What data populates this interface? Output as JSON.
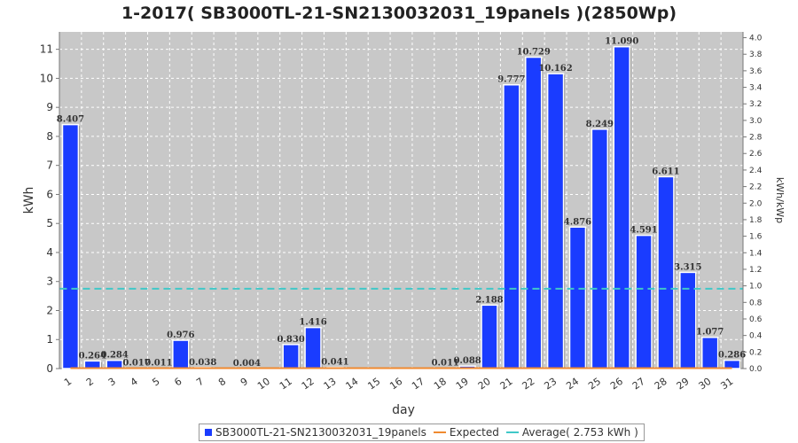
{
  "chart_data": {
    "type": "bar",
    "title": "1-2017( SB3000TL-21-SN2130032031_19panels )(2850Wp)",
    "xlabel": "day",
    "ylabel": "kWh",
    "y2label": "kWh/kWp",
    "ylim": [
      0,
      11.6
    ],
    "y2lim": [
      0,
      4.07
    ],
    "yticks": [
      0,
      1,
      2,
      3,
      4,
      5,
      6,
      7,
      8,
      9,
      10,
      11
    ],
    "y2ticks": [
      "0.0",
      "0.2",
      "0.4",
      "0.6",
      "0.8",
      "1.0",
      "1.2",
      "1.4",
      "1.6",
      "1.8",
      "2.0",
      "2.2",
      "2.4",
      "2.6",
      "2.8",
      "3.0",
      "3.2",
      "3.4",
      "3.6",
      "3.8",
      "4.0"
    ],
    "grid": true,
    "categories": [
      "1",
      "2",
      "3",
      "4",
      "5",
      "6",
      "7",
      "8",
      "9",
      "10",
      "11",
      "12",
      "13",
      "14",
      "15",
      "16",
      "17",
      "18",
      "19",
      "20",
      "21",
      "22",
      "23",
      "24",
      "25",
      "26",
      "27",
      "28",
      "29",
      "30",
      "31"
    ],
    "series": [
      {
        "name": "SB3000TL-21-SN2130032031_19panels",
        "color": "#1a3cff",
        "values": [
          8.407,
          0.264,
          0.284,
          0.017,
          0.011,
          0.976,
          0.038,
          0,
          0.004,
          0,
          0.83,
          1.416,
          0.041,
          0,
          0,
          0,
          0,
          0.011,
          0.088,
          2.188,
          9.777,
          10.729,
          10.162,
          4.876,
          8.249,
          11.09,
          4.591,
          6.611,
          3.315,
          1.077,
          0.286
        ],
        "labels": [
          "8.407",
          "0.264",
          "0.284",
          "0.017",
          "0.011",
          "0.976",
          "0.038",
          "",
          "0.004",
          "",
          "0.830",
          "1.416",
          "0.041",
          "",
          "",
          "",
          "",
          "0.011",
          "0.088",
          "2.188",
          "9.777",
          "10.729",
          "10.162",
          "4.876",
          "8.249",
          "11.090",
          "4.591",
          "6.611",
          "3.315",
          "1.077",
          "0.286"
        ]
      },
      {
        "name": "Expected",
        "color": "#f08a30",
        "values": [
          0,
          0,
          0,
          0,
          0,
          0,
          0,
          0,
          0,
          0,
          0,
          0,
          0,
          0,
          0,
          0,
          0,
          0,
          0,
          0,
          0,
          0,
          0,
          0,
          0,
          0,
          0,
          0,
          0,
          0,
          0
        ]
      },
      {
        "name": "Average( 2.753 kWh )",
        "color": "#40c8c8",
        "value": 2.753
      }
    ],
    "legend": "bottom",
    "colors": {
      "plot_bg": "#c8c8c8",
      "grid": "#ffffff",
      "bar": "#1a3cff"
    }
  }
}
